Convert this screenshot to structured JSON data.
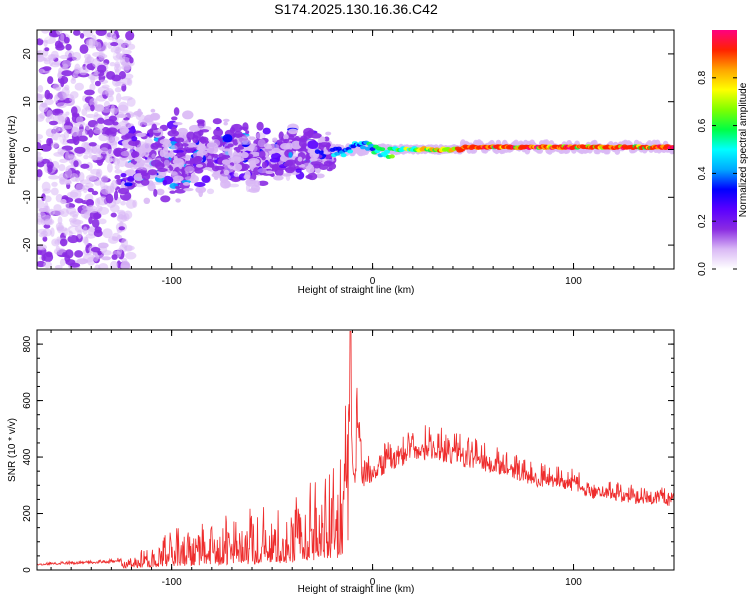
{
  "title": "S174.2025.130.16.36.C42",
  "chart_data": [
    {
      "type": "heatmap",
      "name": "spectrogram",
      "xlabel": "Height of straight line (km)",
      "ylabel": "Frequency (Hz)",
      "xlim": [
        -167,
        150
      ],
      "ylim": [
        -25,
        25
      ],
      "xticks": [
        -100,
        0,
        100
      ],
      "yticks": [
        20,
        10,
        0,
        -10,
        -20
      ],
      "colorbar": {
        "label": "Normalized spectral amplitude",
        "range": [
          0,
          1
        ],
        "ticks": [
          "0.0",
          "0.2",
          "0.4",
          "0.6",
          "0.8"
        ],
        "colors": [
          "#ffffff",
          "#d9b8f5",
          "#8a2be2",
          "#5a00ff",
          "#0000ff",
          "#00aaff",
          "#00ffff",
          "#00ff44",
          "#7fff00",
          "#ffff00",
          "#ffa500",
          "#ff2200",
          "#ff0080"
        ]
      },
      "features": [
        {
          "segment": "scattered noise",
          "x_range": [
            -167,
            -120
          ],
          "freq_range": [
            -25,
            25
          ],
          "amplitude": 0.05
        },
        {
          "segment": "noisy band",
          "x_range": [
            -125,
            -20
          ],
          "freq_range": [
            -12,
            10
          ],
          "amplitude": 0.15
        },
        {
          "segment": "converging line",
          "x_range": [
            -20,
            45
          ],
          "freq_center": 0,
          "amplitude": 0.7
        },
        {
          "segment": "steady line",
          "x_range": [
            45,
            150
          ],
          "freq_center": 0.5,
          "amplitude": 0.9
        }
      ]
    },
    {
      "type": "line",
      "name": "snr",
      "xlabel": "Height of straight line (km)",
      "ylabel": "SNR (10 * v/v)",
      "xlim": [
        -167,
        150
      ],
      "ylim": [
        0,
        850
      ],
      "xticks": [
        -100,
        0,
        100
      ],
      "yticks": [
        0,
        200,
        400,
        600,
        800
      ],
      "color": "#ee2c2c",
      "x": [
        -167,
        -150,
        -130,
        -120,
        -100,
        -80,
        -60,
        -40,
        -25,
        -12,
        -11,
        -5,
        10,
        20,
        30,
        40,
        50,
        60,
        70,
        80,
        90,
        100,
        110,
        120,
        130,
        140,
        150
      ],
      "y": [
        20,
        25,
        30,
        40,
        90,
        120,
        140,
        170,
        250,
        300,
        845,
        330,
        400,
        430,
        440,
        420,
        400,
        380,
        360,
        330,
        320,
        310,
        280,
        270,
        260,
        255,
        250
      ]
    }
  ]
}
